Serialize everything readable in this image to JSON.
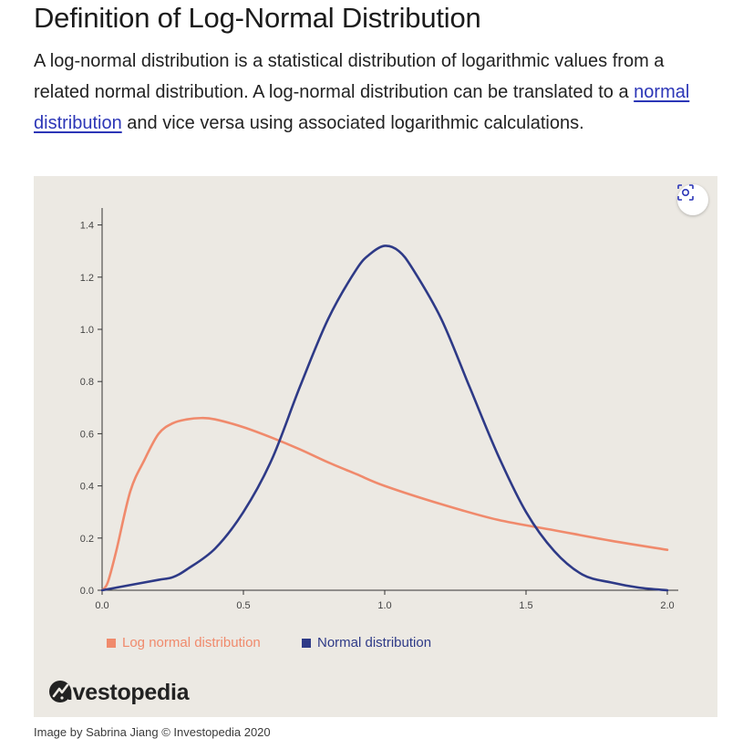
{
  "article": {
    "heading": "Definition of Log-Normal Distribution",
    "intro_part1": "A log-normal distribution is a statistical distribution of logarithmic values from a related normal distribution. A log-normal distribution can be translated to a ",
    "intro_link": "normal distribution",
    "intro_part2": " and vice versa using associated logarithmic calculations."
  },
  "figure": {
    "zoom_icon": "zoom-scan-icon",
    "brand": "Investopedia",
    "caption": "Image by Sabrina Jiang © Investopedia 2020"
  },
  "chart_data": {
    "type": "line",
    "title": "",
    "xlabel": "",
    "ylabel": "",
    "xlim": [
      0,
      2.0
    ],
    "ylim": [
      0,
      1.5
    ],
    "x_ticks": [
      "0.0",
      "0.5",
      "1.0",
      "1.5",
      "2.0"
    ],
    "y_ticks": [
      "0.0",
      "0.2",
      "0.4",
      "0.6",
      "0.8",
      "1.0",
      "1.2",
      "1.4"
    ],
    "legend_position": "bottom-left",
    "grid": false,
    "series": [
      {
        "name": "Log normal distribution",
        "color": "#f08a6c",
        "x": [
          0.0,
          0.02,
          0.05,
          0.1,
          0.15,
          0.2,
          0.25,
          0.3,
          0.35,
          0.4,
          0.5,
          0.6,
          0.7,
          0.8,
          0.9,
          1.0,
          1.2,
          1.4,
          1.6,
          1.8,
          2.0
        ],
        "y": [
          0.0,
          0.03,
          0.15,
          0.38,
          0.5,
          0.6,
          0.64,
          0.655,
          0.66,
          0.655,
          0.625,
          0.585,
          0.54,
          0.49,
          0.445,
          0.4,
          0.33,
          0.27,
          0.23,
          0.19,
          0.155
        ]
      },
      {
        "name": "Normal distribution",
        "color": "#2e3a87",
        "x": [
          0.0,
          0.1,
          0.2,
          0.25,
          0.3,
          0.4,
          0.5,
          0.6,
          0.7,
          0.8,
          0.9,
          0.95,
          1.0,
          1.05,
          1.1,
          1.2,
          1.3,
          1.4,
          1.5,
          1.6,
          1.7,
          1.8,
          1.9,
          2.0
        ],
        "y": [
          0.0,
          0.02,
          0.04,
          0.05,
          0.08,
          0.16,
          0.3,
          0.5,
          0.78,
          1.04,
          1.23,
          1.29,
          1.32,
          1.3,
          1.23,
          1.04,
          0.78,
          0.52,
          0.3,
          0.15,
          0.06,
          0.03,
          0.01,
          0.0
        ]
      }
    ]
  }
}
